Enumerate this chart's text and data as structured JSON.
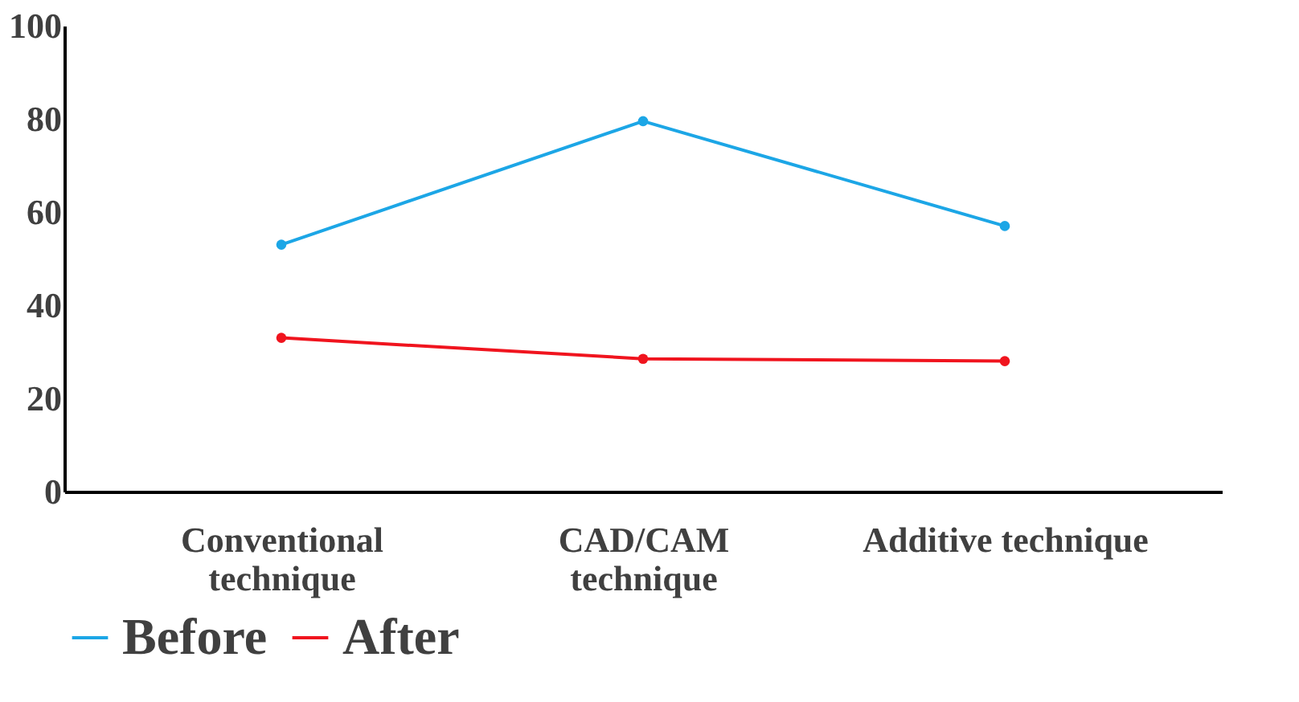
{
  "chart_data": {
    "type": "line",
    "categories": [
      "Conventional\ntechnique",
      "CAD/CAM\ntechnique",
      "Additive technique"
    ],
    "series": [
      {
        "name": "Before",
        "color": "#1ca6e6",
        "values": [
          53,
          79.5,
          57
        ]
      },
      {
        "name": "After",
        "color": "#f0141e",
        "values": [
          33,
          28.5,
          28
        ]
      }
    ],
    "ylim": [
      0,
      100
    ],
    "yticks": [
      0,
      20,
      40,
      60,
      80,
      100
    ],
    "grid": false,
    "legend": "bottom",
    "marker": "circle",
    "line_style": "solid"
  }
}
